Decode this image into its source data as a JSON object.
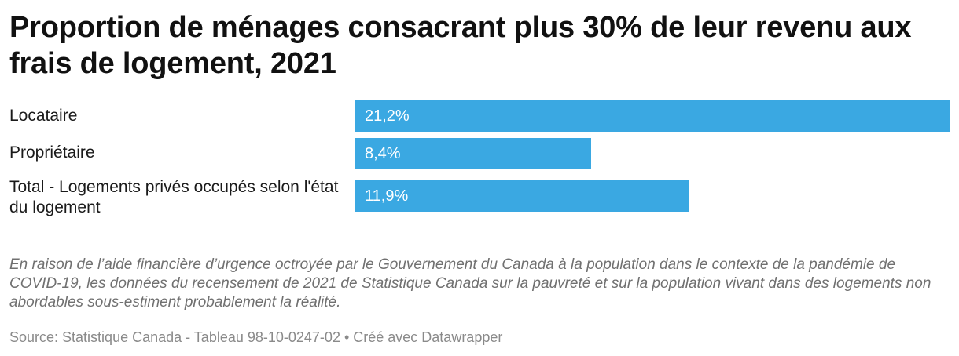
{
  "title": "Proportion de ménages consacrant plus 30% de leur revenu aux frais de logement, 2021",
  "notes": "En raison de l’aide financière d’urgence octroyée par le Gouvernement du Canada à la population dans le contexte de la pandémie de COVID-19, les données du recensement de 2021 de Statistique Canada sur la pauvreté et sur la population vivant dans des logements non abordables sous-estiment probablement la réalité.",
  "source": "Source: Statistique Canada - Tableau 98-10-0247-02 • Créé avec Datawrapper",
  "colors": {
    "bar": "#3aa8e2"
  },
  "chart_data": {
    "type": "bar",
    "orientation": "horizontal",
    "title": "Proportion de ménages consacrant plus 30% de leur revenu aux frais de logement, 2021",
    "categories": [
      "Locataire",
      "Propriétaire",
      "Total - Logements privés occupés selon l'état du logement"
    ],
    "values": [
      21.2,
      8.4,
      11.9
    ],
    "value_labels": [
      "21,2%",
      "8,4%",
      "11,9%"
    ],
    "xlim": [
      0,
      21.2
    ],
    "grid": false,
    "legend": "none"
  }
}
